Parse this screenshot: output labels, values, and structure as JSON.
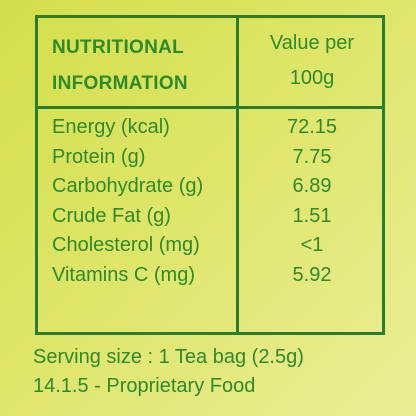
{
  "header": {
    "title": [
      "NUTRITIONAL",
      "INFORMATION"
    ],
    "value_heading": [
      "Value per",
      "100g"
    ]
  },
  "table": {
    "rows": [
      [
        "Energy (kcal)",
        "72.15"
      ],
      [
        "Protein (g)",
        "7.75"
      ],
      [
        "Carbohydrate (g)",
        "6.89"
      ],
      [
        "Crude Fat (g)",
        "1.51"
      ],
      [
        "Cholesterol (mg)",
        "<1"
      ],
      [
        "Vitamins C (mg)",
        "5.92"
      ]
    ]
  },
  "footer": {
    "lines": [
      "Serving size : 1 Tea bag (2.5g)",
      "14.1.5 - Proprietary Food"
    ]
  }
}
